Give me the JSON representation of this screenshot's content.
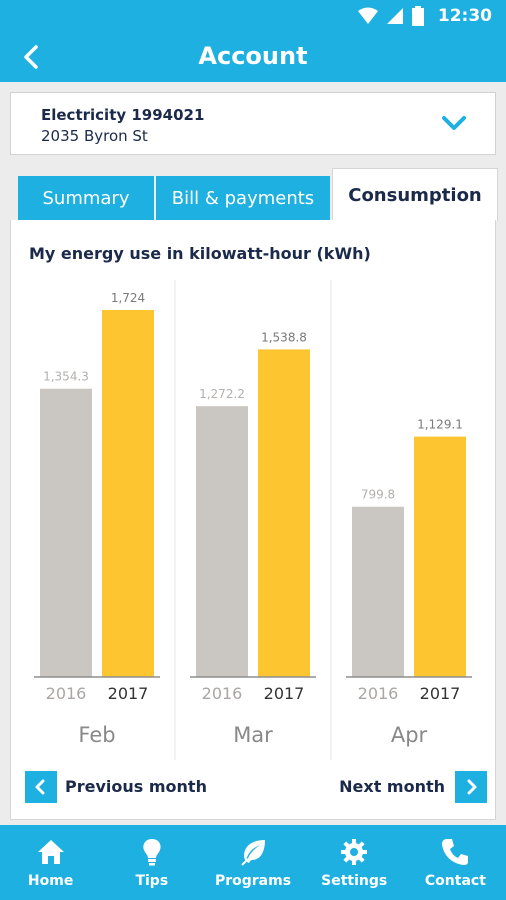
{
  "status": {
    "time": "12:30"
  },
  "appbar": {
    "title": "Account"
  },
  "account": {
    "name": "Electricity 1994021",
    "address": "2035 Byron St"
  },
  "tabs": [
    {
      "label": "Summary",
      "active": false
    },
    {
      "label": "Bill & payments",
      "active": false
    },
    {
      "label": "Consumption",
      "active": true
    }
  ],
  "chart_title": "My energy use in kilowatt-hour (kWh)",
  "chart_data": {
    "type": "bar",
    "title": "My energy use in kilowatt-hour (kWh)",
    "categories": [
      "Feb",
      "Mar",
      "Apr"
    ],
    "series": [
      {
        "name": "2016",
        "values": [
          1354.3,
          1272.2,
          799.8
        ],
        "labels": [
          "1,354.3",
          "1,272.2",
          "799.8"
        ],
        "color": "#cac6c2"
      },
      {
        "name": "2017",
        "values": [
          1724,
          1538.8,
          1129.1
        ],
        "labels": [
          "1,724",
          "1,538.8",
          "1,129.1"
        ],
        "color": "#fdc52f"
      }
    ],
    "ylim": [
      0,
      1724
    ],
    "grid": false
  },
  "pager": {
    "previous": "Previous month",
    "next": "Next month"
  },
  "nav": [
    {
      "label": "Home",
      "icon": "home-icon"
    },
    {
      "label": "Tips",
      "icon": "lightbulb-icon"
    },
    {
      "label": "Programs",
      "icon": "leaf-icon"
    },
    {
      "label": "Settings",
      "icon": "gear-icon"
    },
    {
      "label": "Contact",
      "icon": "phone-icon"
    }
  ],
  "colors": {
    "primary": "#1eb0e0",
    "navy": "#1b2a4a",
    "bar_2016": "#cac6c2",
    "bar_2017": "#fdc52f"
  }
}
